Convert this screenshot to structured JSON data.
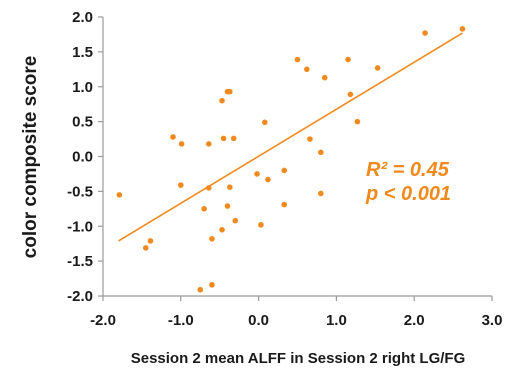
{
  "chart_data": {
    "type": "scatter",
    "xlabel": "Session 2 mean ALFF  in Session 2 right LG/FG",
    "ylabel": "color composite score",
    "xlim": [
      -2.0,
      3.0
    ],
    "ylim": [
      -2.0,
      2.0
    ],
    "x_ticks": [
      "-2.0",
      "-1.0",
      "0.0",
      "1.0",
      "2.0",
      "3.0"
    ],
    "y_ticks": [
      "2.0",
      "1.5",
      "1.0",
      "0.5",
      "0.0",
      "-0.5",
      "-1.0",
      "-1.5",
      "-2.0"
    ],
    "grid": false,
    "point_color": "#f08a1e",
    "annotation_color": "#f08a1e",
    "annotations": {
      "r2": "R² = 0.45",
      "p": "p < 0.001"
    },
    "trendline": {
      "x": [
        -1.8,
        2.62
      ],
      "y": [
        -1.21,
        1.77
      ]
    },
    "points": [
      {
        "x": -1.79,
        "y": -0.55
      },
      {
        "x": -1.45,
        "y": -1.31
      },
      {
        "x": -1.39,
        "y": -1.21
      },
      {
        "x": -1.1,
        "y": 0.28
      },
      {
        "x": -0.99,
        "y": 0.18
      },
      {
        "x": -1.0,
        "y": -0.41
      },
      {
        "x": -0.64,
        "y": 0.18
      },
      {
        "x": -0.64,
        "y": -0.45
      },
      {
        "x": -0.7,
        "y": -0.75
      },
      {
        "x": -0.6,
        "y": -1.18
      },
      {
        "x": -0.6,
        "y": -1.84
      },
      {
        "x": -0.75,
        "y": -1.91
      },
      {
        "x": -0.47,
        "y": 0.8
      },
      {
        "x": -0.4,
        "y": 0.93
      },
      {
        "x": -0.37,
        "y": 0.93
      },
      {
        "x": -0.45,
        "y": 0.26
      },
      {
        "x": -0.32,
        "y": 0.26
      },
      {
        "x": -0.37,
        "y": -0.44
      },
      {
        "x": -0.4,
        "y": -0.71
      },
      {
        "x": -0.47,
        "y": -1.05
      },
      {
        "x": -0.3,
        "y": -0.92
      },
      {
        "x": -0.02,
        "y": -0.25
      },
      {
        "x": 0.08,
        "y": 0.49
      },
      {
        "x": 0.12,
        "y": -0.33
      },
      {
        "x": 0.03,
        "y": -0.98
      },
      {
        "x": 0.33,
        "y": -0.2
      },
      {
        "x": 0.33,
        "y": -0.69
      },
      {
        "x": 0.5,
        "y": 1.39
      },
      {
        "x": 0.62,
        "y": 1.25
      },
      {
        "x": 0.66,
        "y": 0.25
      },
      {
        "x": 0.8,
        "y": 0.06
      },
      {
        "x": 0.8,
        "y": -0.53
      },
      {
        "x": 0.85,
        "y": 1.13
      },
      {
        "x": 1.15,
        "y": 1.39
      },
      {
        "x": 1.18,
        "y": 0.89
      },
      {
        "x": 1.27,
        "y": 0.5
      },
      {
        "x": 1.53,
        "y": 1.27
      },
      {
        "x": 2.14,
        "y": 1.77
      },
      {
        "x": 2.62,
        "y": 1.83
      }
    ]
  }
}
